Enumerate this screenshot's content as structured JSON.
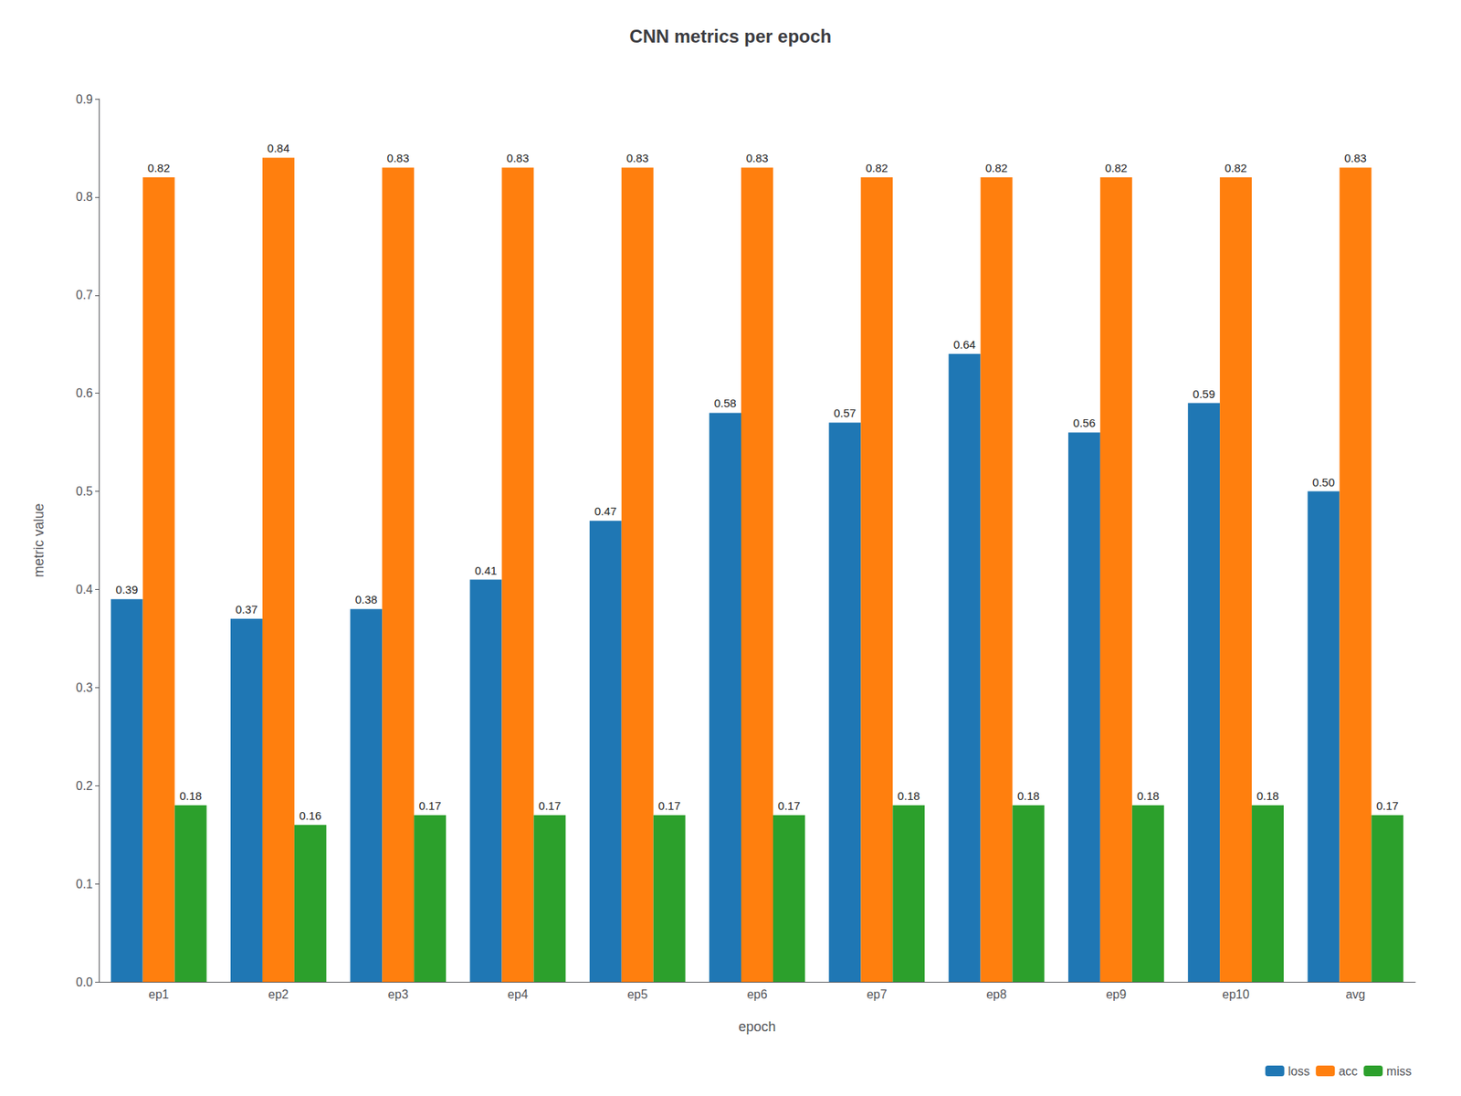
{
  "chart_data": {
    "type": "bar",
    "title": "CNN metrics per epoch",
    "xlabel": "epoch",
    "ylabel": "metric value",
    "categories": [
      "ep1",
      "ep2",
      "ep3",
      "ep4",
      "ep5",
      "ep6",
      "ep7",
      "ep8",
      "ep9",
      "ep10",
      "avg"
    ],
    "series": [
      {
        "name": "loss",
        "color": "#1f77b4",
        "values": [
          0.39,
          0.37,
          0.38,
          0.41,
          0.47,
          0.58,
          0.57,
          0.64,
          0.56,
          0.59,
          0.5
        ],
        "value_labels": [
          "0.39",
          "0.37",
          "0.38",
          "0.41",
          "0.47",
          "0.58",
          "0.57",
          "0.64",
          "0.56",
          "0.59",
          "0.50"
        ]
      },
      {
        "name": "acc",
        "color": "#ff7f0e",
        "values": [
          0.82,
          0.84,
          0.83,
          0.83,
          0.83,
          0.83,
          0.82,
          0.82,
          0.82,
          0.82,
          0.83
        ],
        "value_labels": [
          "0.82",
          "0.84",
          "0.83",
          "0.83",
          "0.83",
          "0.83",
          "0.82",
          "0.82",
          "0.82",
          "0.82",
          "0.83"
        ]
      },
      {
        "name": "miss",
        "color": "#2ca02c",
        "values": [
          0.18,
          0.16,
          0.17,
          0.17,
          0.17,
          0.17,
          0.18,
          0.18,
          0.18,
          0.18,
          0.17
        ],
        "value_labels": [
          "0.18",
          "0.16",
          "0.17",
          "0.17",
          "0.17",
          "0.17",
          "0.18",
          "0.18",
          "0.18",
          "0.18",
          "0.17"
        ]
      }
    ],
    "ylim": [
      0.0,
      0.9
    ],
    "yticks": [
      {
        "value": 0,
        "label": "0.0"
      },
      {
        "value": 0.1,
        "label": "0.1"
      },
      {
        "value": 0.2,
        "label": "0.2"
      },
      {
        "value": 0.3,
        "label": "0.3"
      },
      {
        "value": 0.4,
        "label": "0.4"
      },
      {
        "value": 0.5,
        "label": "0.5"
      },
      {
        "value": 0.6,
        "label": "0.6"
      },
      {
        "value": 0.7,
        "label": "0.7"
      },
      {
        "value": 0.8,
        "label": "0.8"
      },
      {
        "value": 0.9,
        "label": "0.9"
      }
    ],
    "data_labels": true,
    "legend": "lower right",
    "grid": false
  }
}
